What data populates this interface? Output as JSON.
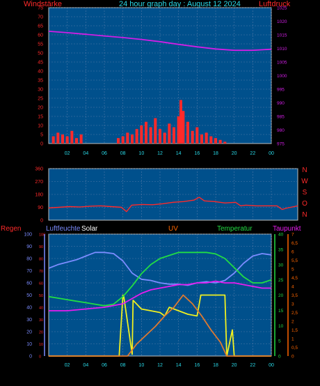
{
  "header": {
    "left_label": "Windstärke",
    "title": "24 hour graph day : August 12 2024",
    "right_label": "Luftdruck"
  },
  "colors": {
    "plot_bg": "#00508c",
    "grid": "#4f79a8",
    "frame": "#c0c0c0",
    "wind": "#ff2a2a",
    "pressure": "#d21ee6",
    "direction": "#ff2a2a",
    "humidity": "#7b8cff",
    "solar": "#f0f020",
    "uv": "#e07a30",
    "temperature": "#22dd44",
    "dewpoint": "#e81cf0",
    "regen_label": "#ff2a2a",
    "uv_label": "#ff6600"
  },
  "chart_data": [
    {
      "type": "bar",
      "title": "24 hour graph day : August 12 2024",
      "xlabel": "",
      "x_ticks": [
        "02",
        "04",
        "06",
        "08",
        "10",
        "12",
        "14",
        "16",
        "18",
        "20",
        "22",
        "00"
      ],
      "left_axis": {
        "label": "Windstärke",
        "ticks": [
          0,
          5,
          10,
          15,
          20,
          25,
          30,
          35,
          40,
          45,
          50,
          55,
          60,
          65,
          70,
          75
        ],
        "range": [
          0,
          75
        ]
      },
      "right_axis": {
        "label": "Luftdruck",
        "ticks": [
          975,
          980,
          985,
          990,
          995,
          1000,
          1005,
          1010,
          1015,
          1020,
          1025
        ],
        "range": [
          975,
          1025
        ]
      },
      "series": [
        {
          "name": "Windstärke",
          "type": "bar",
          "axis": "left",
          "x": [
            0.5,
            1.0,
            1.5,
            2.0,
            2.5,
            3.0,
            3.5,
            7.5,
            8.0,
            8.5,
            9.0,
            9.5,
            10.0,
            10.5,
            11.0,
            11.5,
            12.0,
            12.5,
            13.0,
            13.5,
            14.0,
            14.25,
            14.5,
            15.0,
            15.5,
            16.0,
            16.5,
            17.0,
            17.5,
            18.0,
            18.5,
            19.0
          ],
          "values": [
            4,
            6,
            5,
            4,
            7,
            3,
            5,
            3,
            4,
            6,
            5,
            8,
            10,
            12,
            9,
            14,
            8,
            6,
            11,
            9,
            15,
            24,
            18,
            12,
            7,
            9,
            5,
            6,
            4,
            3,
            2,
            1
          ]
        },
        {
          "name": "Luftdruck",
          "type": "line",
          "axis": "right",
          "x": [
            0,
            2,
            4,
            6,
            8,
            10,
            12,
            14,
            16,
            18,
            20,
            22,
            24
          ],
          "values": [
            1016.3,
            1015.8,
            1015.2,
            1014.6,
            1014.0,
            1013.3,
            1012.5,
            1011.5,
            1010.6,
            1009.8,
            1009.3,
            1009.3,
            1009.7
          ]
        }
      ]
    },
    {
      "type": "scatter",
      "x_ticks": [],
      "left_axis": {
        "ticks": [
          0,
          90,
          180,
          270,
          360
        ],
        "range": [
          0,
          360
        ]
      },
      "right_labels": [
        "N",
        "W",
        "S",
        "O",
        "N"
      ],
      "series": [
        {
          "name": "Windrichtung",
          "type": "line",
          "x": [
            0,
            1,
            2,
            3,
            4,
            5,
            6,
            7,
            7.5,
            8,
            9,
            10,
            11,
            12,
            13,
            14,
            14.5,
            15,
            16,
            17,
            18,
            18.5,
            19,
            20,
            21,
            22,
            22.5,
            23,
            24
          ],
          "values": [
            85,
            90,
            95,
            92,
            98,
            100,
            95,
            90,
            60,
            105,
            110,
            108,
            115,
            125,
            130,
            140,
            160,
            135,
            130,
            120,
            125,
            100,
            105,
            100,
            100,
            100,
            75,
            85,
            100
          ]
        }
      ]
    },
    {
      "type": "line",
      "x_ticks": [
        "02",
        "04",
        "06",
        "08",
        "10",
        "12",
        "14",
        "16",
        "18",
        "20",
        "22",
        "00"
      ],
      "axes": {
        "regen": {
          "label": "Regen",
          "ticks": [
            0,
            10,
            20,
            30,
            40,
            50,
            60,
            70,
            80,
            90,
            100
          ],
          "range": [
            0,
            100
          ]
        },
        "luftfeuchte": {
          "label": "Luftfeuchte",
          "ticks": [
            0,
            10,
            20,
            30,
            40,
            50,
            60,
            70,
            80,
            90,
            100
          ],
          "range": [
            0,
            100
          ]
        },
        "temperatur": {
          "label": "Temperatur",
          "ticks": [
            0,
            5,
            10,
            15,
            20,
            25,
            30,
            35,
            40
          ],
          "range": [
            0,
            40
          ]
        },
        "taupunkt": {
          "label": "Taupunkt",
          "ticks": [
            0,
            0.5,
            1,
            1.5,
            2,
            2.5,
            3,
            3.5,
            4,
            4.5,
            5,
            5.5,
            6,
            6.5,
            7
          ],
          "range": [
            0,
            7
          ]
        }
      },
      "top_labels": [
        "Regen",
        "Luftfeuchte",
        "Solar",
        "UV",
        "Temperatur",
        "Taupunkt"
      ],
      "series": [
        {
          "name": "Luftfeuchte",
          "axis": "luftfeuchte",
          "x": [
            0,
            1,
            2,
            3,
            4,
            5,
            6,
            7,
            8,
            9,
            10,
            11,
            12,
            13,
            14,
            15,
            16,
            17,
            18,
            19,
            20,
            21,
            22,
            23,
            24
          ],
          "values": [
            72,
            75,
            77,
            79,
            82,
            85,
            85,
            84,
            78,
            68,
            63,
            62,
            60,
            59,
            59,
            58,
            60,
            61,
            60,
            62,
            68,
            76,
            82,
            84,
            83
          ]
        },
        {
          "name": "Solar",
          "axis": "taupunkt",
          "x": [
            0,
            7.6,
            8.0,
            8.1,
            9.0,
            9.1,
            10,
            11,
            12,
            12.5,
            13,
            14,
            15,
            16,
            16.4,
            17,
            18,
            19,
            19.2,
            19.8,
            20,
            24
          ],
          "values": [
            0,
            0,
            3.5,
            3.4,
            0.1,
            3.2,
            2.7,
            2.6,
            2.5,
            2.3,
            2.8,
            2.6,
            2.4,
            2.3,
            3.5,
            3.5,
            3.5,
            3.5,
            0,
            1.5,
            0,
            0
          ]
        },
        {
          "name": "UV",
          "axis": "taupunkt",
          "x": [
            0,
            8.5,
            9.5,
            10.5,
            11.5,
            12.5,
            13.5,
            14.5,
            15.5,
            16.5,
            17.5,
            18.5,
            19.2,
            24
          ],
          "values": [
            0,
            0,
            0.7,
            1.2,
            1.7,
            2.3,
            2.8,
            3.5,
            3.0,
            2.3,
            1.5,
            0.8,
            0,
            0
          ]
        },
        {
          "name": "Temperatur",
          "axis": "temperatur",
          "x": [
            0,
            1,
            2,
            3,
            4,
            5,
            6,
            7,
            8,
            9,
            10,
            11,
            12,
            13,
            14,
            15,
            16,
            17,
            18,
            19,
            20,
            21,
            22,
            23,
            24
          ],
          "values": [
            19.5,
            19,
            18.5,
            18,
            17.5,
            17,
            16.5,
            17,
            19.5,
            23,
            27,
            30,
            32,
            33,
            34,
            34,
            34,
            34,
            33.5,
            32,
            29,
            26,
            24,
            24,
            25
          ]
        },
        {
          "name": "Taupunkt",
          "axis": "taupunkt",
          "x": [
            0,
            2,
            4,
            6,
            8,
            9,
            10,
            11,
            12,
            13,
            14,
            15,
            16,
            17,
            18,
            19,
            20,
            21,
            22,
            23,
            24
          ],
          "values": [
            2.6,
            2.6,
            2.7,
            2.8,
            3.0,
            3.3,
            3.6,
            3.8,
            3.9,
            4.0,
            4.1,
            4.1,
            4.2,
            4.2,
            4.3,
            4.2,
            4.2,
            4.1,
            4.0,
            3.9,
            3.9
          ]
        }
      ]
    }
  ]
}
